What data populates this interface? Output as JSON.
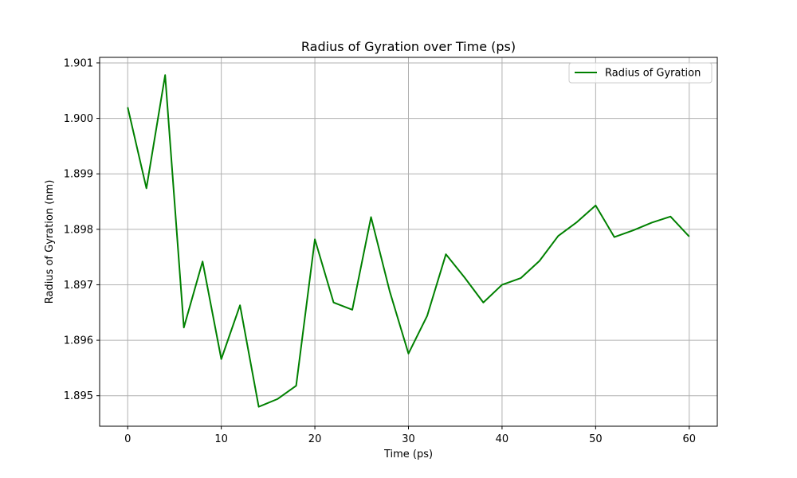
{
  "chart_data": {
    "type": "line",
    "title": "Radius of Gyration over Time (ps)",
    "xlabel": "Time (ps)",
    "ylabel": "Radius of Gyration (nm)",
    "xlim": [
      -3,
      63
    ],
    "ylim": [
      1.89445,
      1.9011
    ],
    "xticks": [
      0,
      10,
      20,
      30,
      40,
      50,
      60
    ],
    "xtick_labels": [
      "0",
      "10",
      "20",
      "30",
      "40",
      "50",
      "60"
    ],
    "yticks": [
      1.895,
      1.896,
      1.897,
      1.898,
      1.899,
      1.9,
      1.901
    ],
    "ytick_labels": [
      "1.895",
      "1.896",
      "1.897",
      "1.898",
      "1.899",
      "1.900",
      "1.901"
    ],
    "grid": true,
    "legend_position": "upper right",
    "series": [
      {
        "name": "Radius of Gyration",
        "color": "#008000",
        "x": [
          0,
          2,
          4,
          6,
          8,
          10,
          12,
          14,
          16,
          18,
          20,
          22,
          24,
          26,
          28,
          30,
          32,
          34,
          36,
          38,
          40,
          42,
          44,
          46,
          48,
          50,
          52,
          54,
          56,
          58,
          60
        ],
        "y": [
          1.9002,
          1.89874,
          1.90078,
          1.89623,
          1.89742,
          1.89566,
          1.89663,
          1.8948,
          1.89494,
          1.89518,
          1.89782,
          1.89668,
          1.89655,
          1.89822,
          1.89688,
          1.89576,
          1.89644,
          1.89755,
          1.89713,
          1.89668,
          1.897,
          1.89712,
          1.89743,
          1.89788,
          1.89813,
          1.89843,
          1.89786,
          1.89798,
          1.89812,
          1.89823,
          1.89787
        ]
      }
    ]
  }
}
